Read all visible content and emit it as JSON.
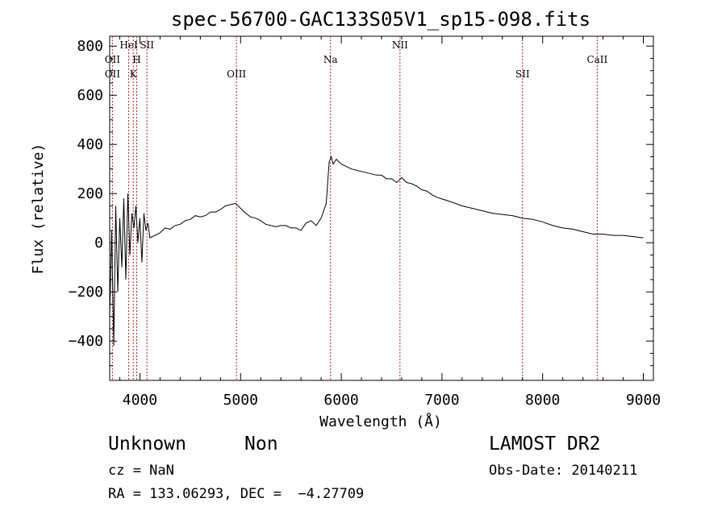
{
  "chart_data": {
    "type": "line",
    "title": "spec-56700-GAC133S05V1_sp15-098.fits",
    "xlabel": "Wavelength (Å)",
    "ylabel": "Flux (relative)",
    "xlim": [
      3700,
      9100
    ],
    "ylim": [
      -560,
      840
    ],
    "x_ticks": [
      4000,
      5000,
      6000,
      7000,
      8000,
      9000
    ],
    "y_ticks": [
      -400,
      -200,
      0,
      200,
      400,
      600,
      800
    ],
    "x_tick_labels": [
      "4000",
      "5000",
      "6000",
      "7000",
      "8000",
      "9000"
    ],
    "y_tick_labels": [
      "−400",
      "−200",
      "0",
      "200",
      "400",
      "600",
      "800"
    ],
    "grid": false,
    "line_color": "#000000",
    "marker_color": "#b22222",
    "series": [
      {
        "x": [
          3700,
          3720,
          3740,
          3760,
          3780,
          3800,
          3820,
          3840,
          3860,
          3880,
          3900,
          3920,
          3940,
          3960,
          3980,
          4000,
          4020,
          4040,
          4060,
          4080,
          4100,
          4150,
          4200,
          4250,
          4300,
          4350,
          4400,
          4450,
          4500,
          4550,
          4600,
          4650,
          4700,
          4750,
          4800,
          4850,
          4900,
          4950,
          5000,
          5050,
          5100,
          5150,
          5200,
          5250,
          5300,
          5350,
          5400,
          5450,
          5500,
          5550,
          5600,
          5650,
          5700,
          5750,
          5800,
          5850,
          5880,
          5900,
          5920,
          5950,
          6000,
          6050,
          6100,
          6150,
          6200,
          6250,
          6300,
          6350,
          6400,
          6450,
          6500,
          6550,
          6600,
          6650,
          6700,
          6750,
          6800,
          6850,
          6900,
          6950,
          7000,
          7100,
          7200,
          7300,
          7400,
          7500,
          7600,
          7700,
          7800,
          7900,
          8000,
          8100,
          8200,
          8300,
          8400,
          8500,
          8600,
          8700,
          8800,
          8900,
          9000
        ],
        "y": [
          -300,
          50,
          -420,
          150,
          -200,
          100,
          -100,
          180,
          -150,
          200,
          -50,
          120,
          60,
          150,
          0,
          100,
          -80,
          120,
          50,
          80,
          20,
          30,
          40,
          60,
          55,
          70,
          75,
          90,
          95,
          110,
          105,
          110,
          125,
          125,
          135,
          150,
          155,
          160,
          140,
          120,
          105,
          100,
          90,
          75,
          70,
          65,
          70,
          70,
          60,
          60,
          50,
          80,
          90,
          70,
          100,
          160,
          330,
          350,
          320,
          340,
          320,
          310,
          300,
          295,
          290,
          285,
          280,
          275,
          275,
          260,
          260,
          245,
          265,
          245,
          240,
          230,
          215,
          210,
          195,
          185,
          178,
          165,
          150,
          140,
          130,
          120,
          115,
          110,
          100,
          95,
          85,
          70,
          60,
          55,
          45,
          35,
          35,
          30,
          30,
          25,
          20
        ]
      }
    ],
    "lines": [
      {
        "label": "OII",
        "x": 3727,
        "row": 1
      },
      {
        "label": "OII",
        "x": 3727,
        "row": 2
      },
      {
        "label": "HeI",
        "x": 3889,
        "row": 0
      },
      {
        "label": "H",
        "x": 3968,
        "row": 1
      },
      {
        "label": "K",
        "x": 3934,
        "row": 2
      },
      {
        "label": "SII",
        "x": 4070,
        "row": 0
      },
      {
        "label": "OIII",
        "x": 4959,
        "row": 2
      },
      {
        "label": "Na",
        "x": 5893,
        "row": 1
      },
      {
        "label": "NII",
        "x": 6583,
        "row": 0
      },
      {
        "label": "SII",
        "x": 7800,
        "row": 2
      },
      {
        "label": "CaII",
        "x": 8542,
        "row": 1
      }
    ]
  },
  "info": {
    "class": "Unknown",
    "subclass": "Non",
    "survey": "LAMOST DR2",
    "cz": "cz = NaN",
    "obs_date": "Obs-Date: 20140211",
    "radec": "RA = 133.06293, DEC =  −4.27709"
  }
}
